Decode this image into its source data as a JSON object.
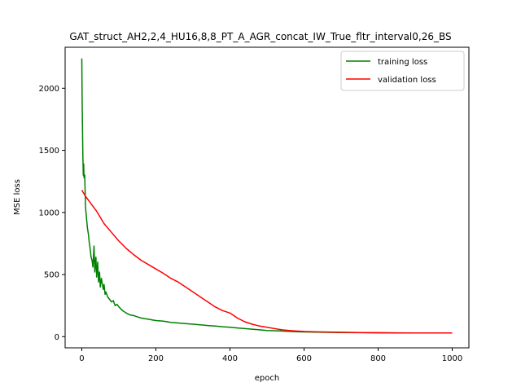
{
  "chart_data": {
    "type": "line",
    "title": "GAT_struct_AH2,2,4_HU16,8,8_PT_A_AGR_concat_IW_True_fltr_interval0,26_BS",
    "xlabel": "epoch",
    "ylabel": "MSE loss",
    "xlim": [
      -45,
      1045
    ],
    "ylim": [
      -90,
      2330
    ],
    "xticks": [
      0,
      200,
      400,
      600,
      800,
      1000
    ],
    "yticks": [
      0,
      500,
      1000,
      1500,
      2000
    ],
    "grid": false,
    "legend_position": "top-right",
    "series": [
      {
        "name": "training loss",
        "color": "#008000",
        "x": [
          0,
          1,
          2,
          3,
          4,
          5,
          6,
          8,
          10,
          12,
          15,
          18,
          20,
          22,
          25,
          28,
          30,
          33,
          35,
          38,
          40,
          43,
          45,
          48,
          50,
          53,
          55,
          58,
          60,
          63,
          65,
          70,
          75,
          80,
          85,
          90,
          95,
          100,
          110,
          120,
          130,
          140,
          150,
          160,
          170,
          180,
          190,
          200,
          220,
          240,
          260,
          280,
          300,
          320,
          340,
          360,
          380,
          400,
          420,
          440,
          460,
          480,
          500,
          520,
          540,
          560,
          580,
          600,
          650,
          700,
          750,
          800,
          850,
          900,
          950,
          1000
        ],
        "y": [
          2240,
          1900,
          1650,
          1450,
          1300,
          1390,
          1280,
          1300,
          1050,
          980,
          880,
          820,
          760,
          720,
          640,
          610,
          560,
          730,
          520,
          640,
          480,
          600,
          440,
          520,
          400,
          470,
          430,
          380,
          420,
          340,
          360,
          320,
          300,
          280,
          290,
          250,
          260,
          240,
          210,
          190,
          175,
          170,
          160,
          150,
          145,
          140,
          135,
          130,
          125,
          115,
          110,
          105,
          100,
          95,
          90,
          85,
          80,
          75,
          70,
          65,
          60,
          55,
          50,
          48,
          45,
          42,
          40,
          38,
          35,
          33,
          32,
          31,
          30,
          30,
          30,
          30
        ]
      },
      {
        "name": "validation loss",
        "color": "#ff0000",
        "x": [
          0,
          10,
          20,
          40,
          60,
          80,
          100,
          120,
          140,
          160,
          180,
          200,
          220,
          240,
          260,
          280,
          300,
          320,
          340,
          360,
          380,
          400,
          420,
          440,
          460,
          480,
          500,
          520,
          540,
          560,
          580,
          600,
          650,
          700,
          750,
          800,
          850,
          900,
          950,
          1000
        ],
        "y": [
          1180,
          1130,
          1090,
          1010,
          910,
          840,
          770,
          710,
          660,
          615,
          580,
          545,
          510,
          470,
          440,
          400,
          360,
          320,
          280,
          240,
          210,
          190,
          150,
          120,
          100,
          85,
          75,
          65,
          55,
          50,
          45,
          42,
          38,
          35,
          33,
          32,
          31,
          30,
          30,
          30
        ]
      }
    ]
  }
}
